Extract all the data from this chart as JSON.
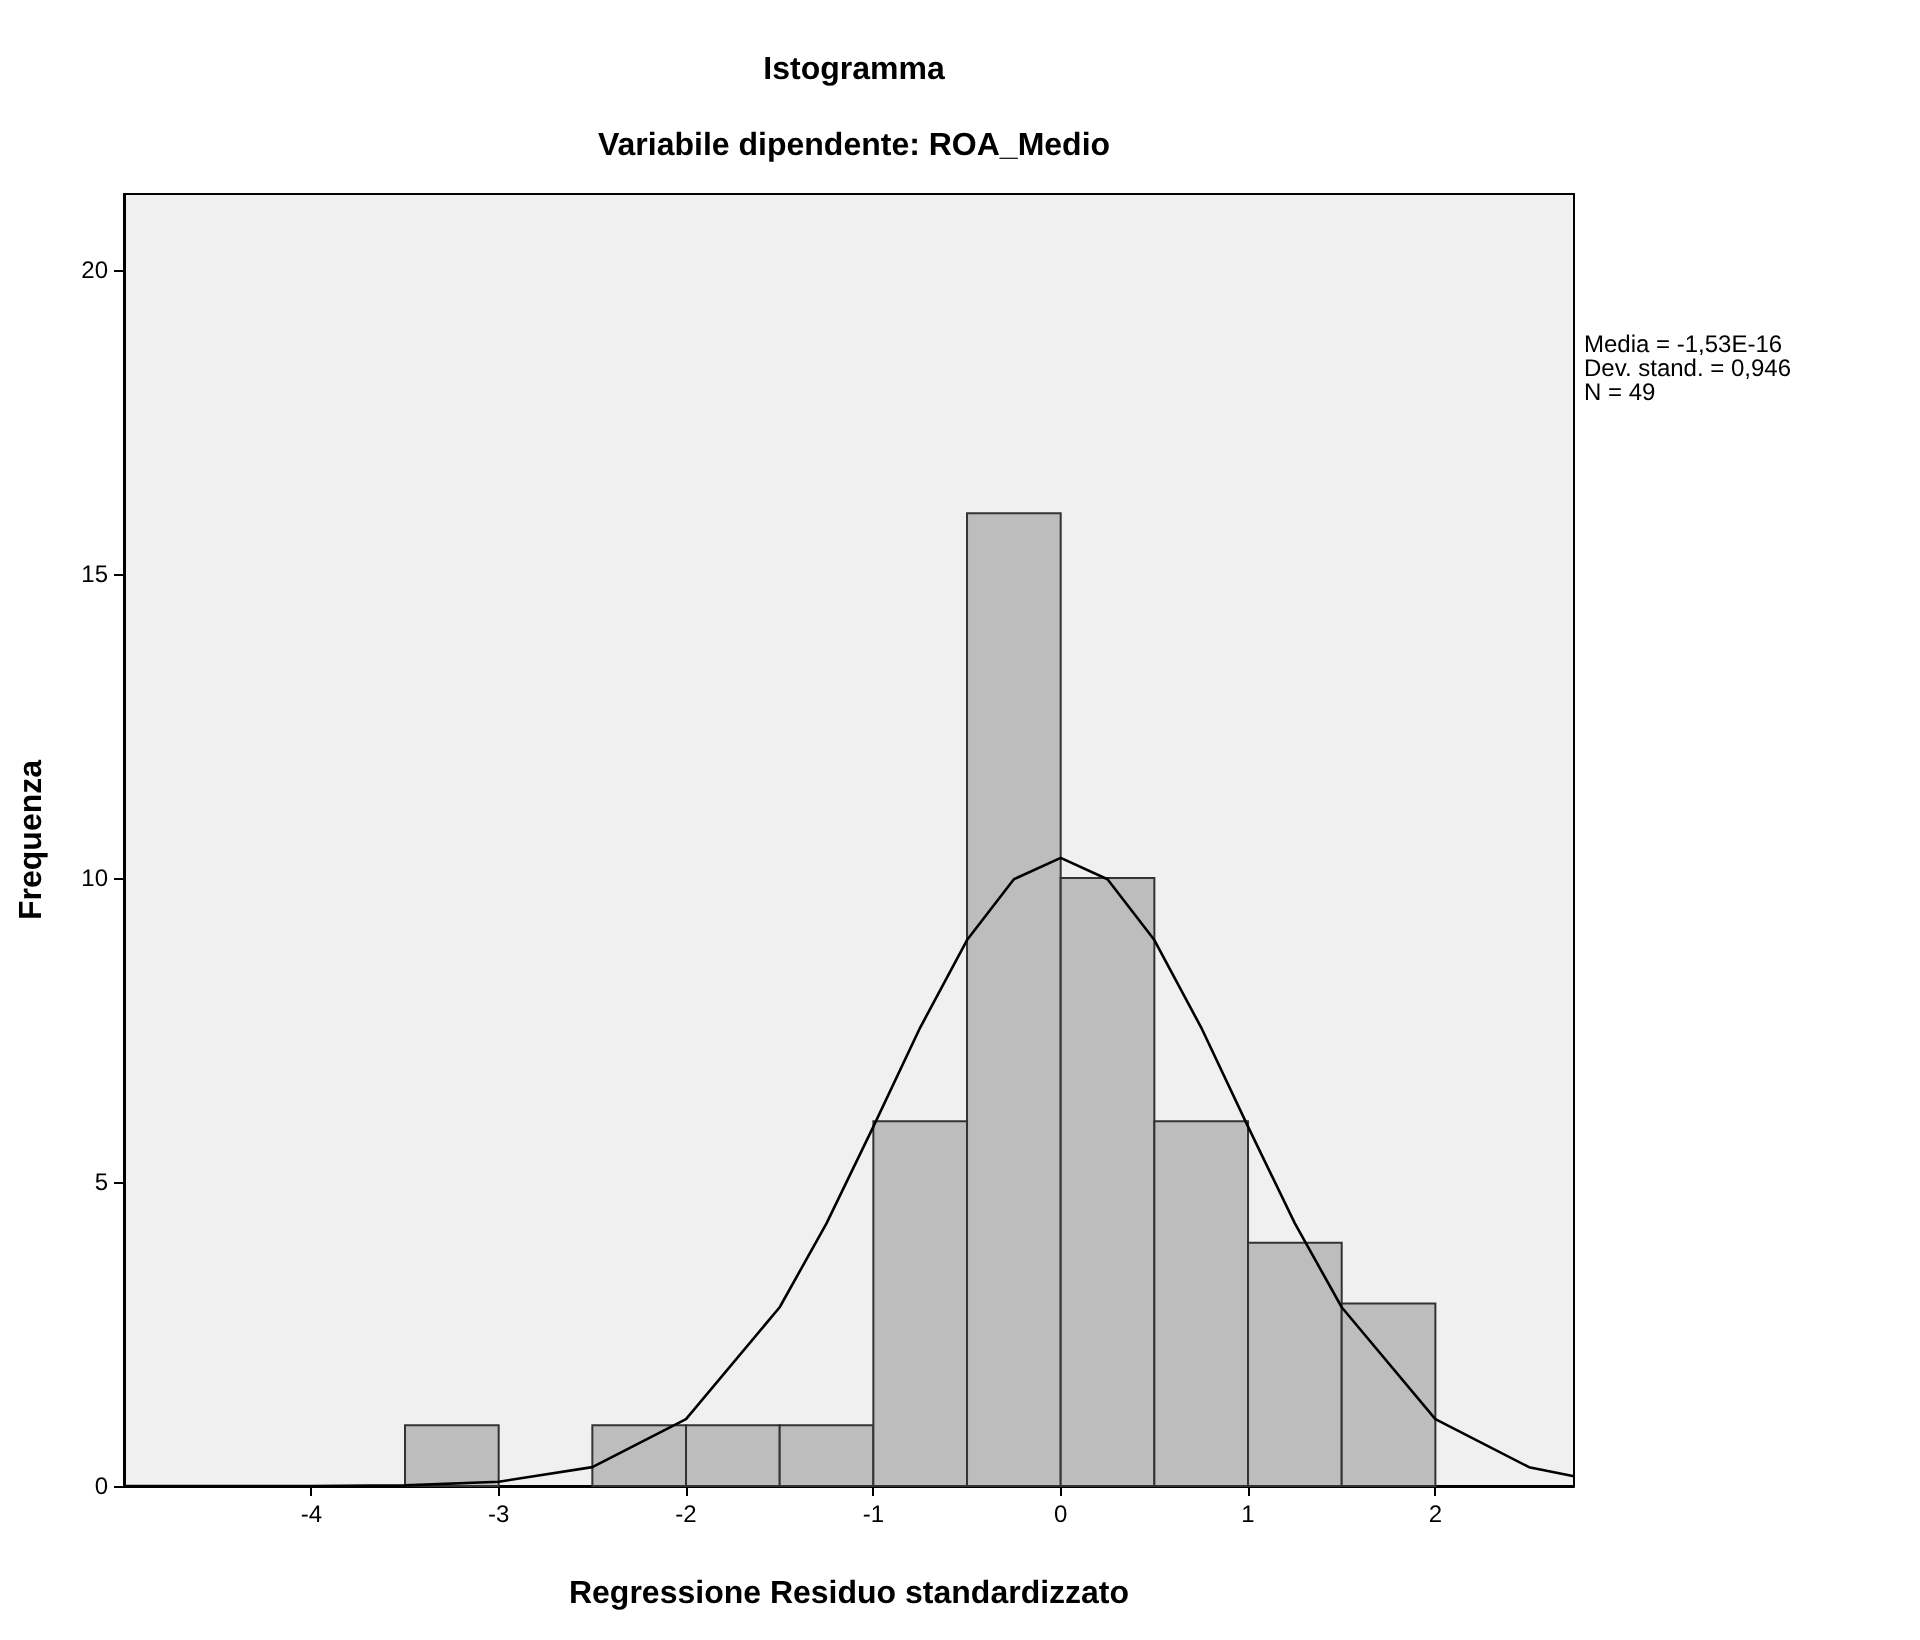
{
  "chart_data": {
    "type": "histogram",
    "title": "Istogramma",
    "subtitle": "Variabile dipendente: ROA_Medio",
    "xlabel": "Regressione Residuo standardizzato",
    "ylabel": "Frequenza",
    "annotations": [
      "Media = -1,53E-16",
      "Dev. stand. = 0,946",
      "N = 49"
    ],
    "bins": [
      -3.5,
      -3,
      -2.5,
      -2,
      -1.5,
      -1,
      -0.5,
      0,
      0.5,
      1,
      1.5,
      2
    ],
    "series": [
      {
        "color": "#bdbdbd",
        "values": [
          1,
          0,
          1,
          1,
          1,
          6,
          16,
          10,
          6,
          4,
          3
        ]
      },
      {
        "type": "line",
        "color": "#000000",
        "x": [
          -5,
          -4,
          -3.5,
          -3,
          -2.5,
          -2,
          -1.5,
          -1.25,
          -1,
          -0.75,
          -0.5,
          -0.25,
          0,
          0.25,
          0.5,
          0.75,
          1,
          1.25,
          1.5,
          2,
          2.5,
          2.74
        ],
        "values": [
          0,
          0,
          0.01,
          0.07,
          0.31,
          1.1,
          2.94,
          4.32,
          5.91,
          7.54,
          8.98,
          9.98,
          10.33,
          9.98,
          8.98,
          7.54,
          5.91,
          4.32,
          2.94,
          1.1,
          0.31,
          0.16
        ]
      }
    ],
    "xlim": [
      -5,
      2.74
    ],
    "xticks": [
      -4,
      -3,
      -2,
      -1,
      0,
      1,
      2
    ],
    "ylim": [
      0,
      21.25
    ],
    "yticks": [
      0,
      5,
      10,
      15,
      20
    ],
    "grid": false,
    "marker": "none",
    "line_style": "solid"
  }
}
